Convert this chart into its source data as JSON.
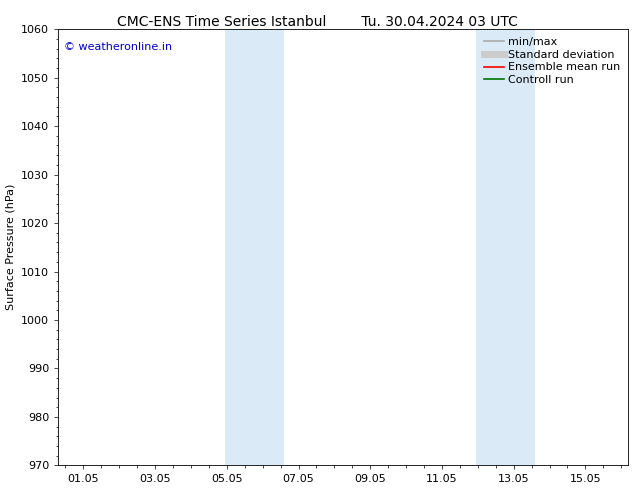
{
  "title_left": "CMC-ENS Time Series Istanbul",
  "title_right": "Tu. 30.04.2024 03 UTC",
  "ylabel": "Surface Pressure (hPa)",
  "ylim": [
    970,
    1060
  ],
  "yticks": [
    970,
    980,
    990,
    1000,
    1010,
    1020,
    1030,
    1040,
    1050,
    1060
  ],
  "xtick_labels": [
    "01.05",
    "03.05",
    "05.05",
    "07.05",
    "09.05",
    "11.05",
    "13.05",
    "15.05"
  ],
  "xtick_positions": [
    0,
    2,
    4,
    6,
    8,
    10,
    12,
    14
  ],
  "xlim": [
    -0.7,
    15.2
  ],
  "shaded_bands": [
    {
      "x_start": 3.95,
      "x_end": 5.6,
      "color": "#daeaf7"
    },
    {
      "x_start": 10.95,
      "x_end": 12.6,
      "color": "#daeaf7"
    }
  ],
  "watermark": "© weatheronline.in",
  "watermark_color": "#0000cc",
  "background_color": "#ffffff",
  "legend_entries": [
    {
      "label": "min/max",
      "color": "#aaaaaa",
      "lw": 1.2
    },
    {
      "label": "Standard deviation",
      "color": "#cccccc",
      "lw": 5
    },
    {
      "label": "Ensemble mean run",
      "color": "#ff0000",
      "lw": 1.2
    },
    {
      "label": "Controll run",
      "color": "#007700",
      "lw": 1.2
    }
  ],
  "title_fontsize": 10,
  "label_fontsize": 8,
  "tick_fontsize": 8,
  "legend_fontsize": 8
}
